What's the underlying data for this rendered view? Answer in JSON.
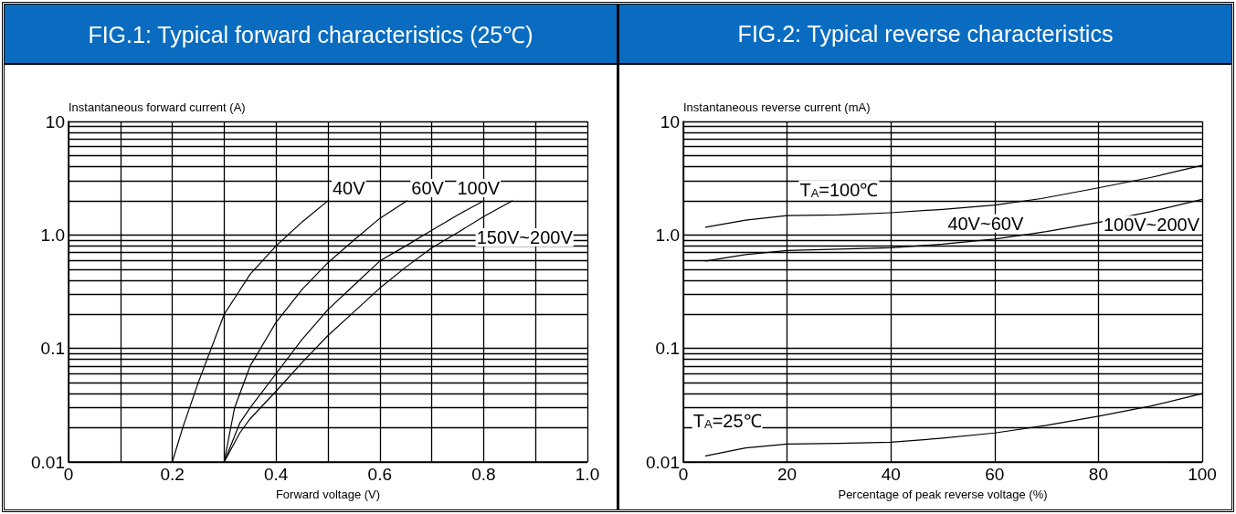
{
  "chart_data": [
    {
      "type": "line",
      "title": "FIG.1: Typical forward characteristics (25℃)",
      "xlabel": "Forward voltage (V)",
      "ylabel": "Instantaneous forward current (A)",
      "series": [
        {
          "name": "40V",
          "color": "#000000",
          "x": [
            0.2,
            0.22,
            0.25,
            0.3,
            0.35,
            0.4,
            0.45,
            0.5
          ],
          "values": [
            0.01,
            0.02,
            0.05,
            0.2,
            0.45,
            0.8,
            1.3,
            2.0
          ]
        },
        {
          "name": "60V",
          "color": "#000000",
          "x": [
            0.3,
            0.32,
            0.35,
            0.4,
            0.45,
            0.5,
            0.55,
            0.6,
            0.652
          ],
          "values": [
            0.01,
            0.03,
            0.07,
            0.17,
            0.33,
            0.57,
            0.9,
            1.4,
            2.0
          ]
        },
        {
          "name": "100V",
          "color": "#000000",
          "x": [
            0.3,
            0.33,
            0.35,
            0.4,
            0.45,
            0.5,
            0.55,
            0.6,
            0.65,
            0.7,
            0.75,
            0.8
          ],
          "values": [
            0.01,
            0.022,
            0.03,
            0.06,
            0.12,
            0.22,
            0.36,
            0.59,
            0.8,
            1.1,
            1.5,
            2.0
          ]
        },
        {
          "name": "150V~200V",
          "color": "#000000",
          "x": [
            0.3,
            0.33,
            0.35,
            0.4,
            0.45,
            0.5,
            0.55,
            0.6,
            0.65,
            0.7,
            0.75,
            0.8,
            0.855
          ],
          "values": [
            0.01,
            0.018,
            0.024,
            0.042,
            0.075,
            0.13,
            0.21,
            0.34,
            0.52,
            0.77,
            1.05,
            1.45,
            2.0
          ]
        }
      ],
      "xlim": [
        0,
        1.0
      ],
      "xticks": [
        0,
        {
          "value": 0.1,
          "label": null
        },
        0.2,
        {
          "value": 0.3,
          "label": null
        },
        0.4,
        {
          "value": 0.5,
          "label": null
        },
        0.6,
        {
          "value": 0.7,
          "label": null
        },
        0.8,
        {
          "value": 0.9,
          "label": null
        },
        {
          "value": 1.0,
          "label": "1.0"
        }
      ],
      "ylim": [
        0.01,
        10
      ],
      "yticks": [
        0.01,
        {
          "value": 0.02,
          "label": null
        },
        {
          "value": 0.03,
          "label": null
        },
        {
          "value": 0.04,
          "label": null
        },
        {
          "value": 0.05,
          "label": null
        },
        {
          "value": 0.06,
          "label": null
        },
        {
          "value": 0.07,
          "label": null
        },
        {
          "value": 0.08,
          "label": null
        },
        {
          "value": 0.09,
          "label": null
        },
        0.1,
        {
          "value": 0.2,
          "label": null
        },
        {
          "value": 0.3,
          "label": null
        },
        {
          "value": 0.4,
          "label": null
        },
        {
          "value": 0.5,
          "label": null
        },
        {
          "value": 0.6,
          "label": null
        },
        {
          "value": 0.7,
          "label": null
        },
        {
          "value": 0.8,
          "label": null
        },
        {
          "value": 0.9,
          "label": null
        },
        {
          "value": 1,
          "label": "1.0"
        },
        {
          "value": 2,
          "label": null
        },
        {
          "value": 3,
          "label": null
        },
        {
          "value": 4,
          "label": null
        },
        {
          "value": 5,
          "label": null
        },
        {
          "value": 6,
          "label": null
        },
        {
          "value": 7,
          "label": null
        },
        {
          "value": 8,
          "label": null
        },
        {
          "value": 9,
          "label": null
        },
        10
      ],
      "log": "y",
      "grid": true,
      "marker": "none",
      "line_style": "solid"
    },
    {
      "type": "line",
      "title": "FIG.2: Typical reverse characteristics",
      "xlabel": "Percentage of peak reverse voltage (%)",
      "ylabel": "Instantaneous reverse current (mA)",
      "series": [
        {
          "name": "40V~60V",
          "color": "#000000",
          "x": [
            4.3,
            12,
            20,
            30,
            40,
            50,
            60,
            69,
            80,
            90,
            100
          ],
          "values": [
            1.17,
            1.35,
            1.48,
            1.5,
            1.57,
            1.68,
            1.83,
            2.09,
            2.6,
            3.2,
            4.1
          ]
        },
        {
          "name": "100V~200V",
          "color": "#000000",
          "x": [
            4.3,
            12,
            20,
            30,
            40,
            50,
            60,
            70,
            80,
            90,
            100
          ],
          "values": [
            0.59,
            0.67,
            0.73,
            0.75,
            0.77,
            0.83,
            0.92,
            1.07,
            1.29,
            1.6,
            2.06
          ]
        },
        {
          "name": "T$_{A}$=25℃",
          "color": "#000000",
          "x": [
            4.3,
            12,
            20,
            30,
            40,
            50,
            60,
            70,
            80,
            90,
            100
          ],
          "values": [
            0.0113,
            0.0133,
            0.0144,
            0.0146,
            0.0149,
            0.0162,
            0.018,
            0.021,
            0.0253,
            0.031,
            0.04
          ]
        }
      ],
      "annotations": [
        "T$_{A}$=100℃"
      ],
      "xlim": [
        0,
        100
      ],
      "xticks": [
        0,
        20,
        40,
        60,
        80,
        100
      ],
      "ylim": [
        0.01,
        10
      ],
      "yticks": [
        0.01,
        {
          "value": 0.02,
          "label": null
        },
        {
          "value": 0.03,
          "label": null
        },
        {
          "value": 0.04,
          "label": null
        },
        {
          "value": 0.05,
          "label": null
        },
        {
          "value": 0.06,
          "label": null
        },
        {
          "value": 0.07,
          "label": null
        },
        {
          "value": 0.08,
          "label": null
        },
        {
          "value": 0.09,
          "label": null
        },
        0.1,
        {
          "value": 0.2,
          "label": null
        },
        {
          "value": 0.3,
          "label": null
        },
        {
          "value": 0.4,
          "label": null
        },
        {
          "value": 0.5,
          "label": null
        },
        {
          "value": 0.6,
          "label": null
        },
        {
          "value": 0.7,
          "label": null
        },
        {
          "value": 0.8,
          "label": null
        },
        {
          "value": 0.9,
          "label": null
        },
        {
          "value": 1,
          "label": "1.0"
        },
        {
          "value": 2,
          "label": null
        },
        {
          "value": 3,
          "label": null
        },
        {
          "value": 4,
          "label": null
        },
        {
          "value": 5,
          "label": null
        },
        {
          "value": 6,
          "label": null
        },
        {
          "value": 7,
          "label": null
        },
        {
          "value": 8,
          "label": null
        },
        {
          "value": 9,
          "label": null
        },
        10
      ],
      "log": "y",
      "grid": true,
      "marker": "none",
      "line_style": "solid"
    }
  ]
}
